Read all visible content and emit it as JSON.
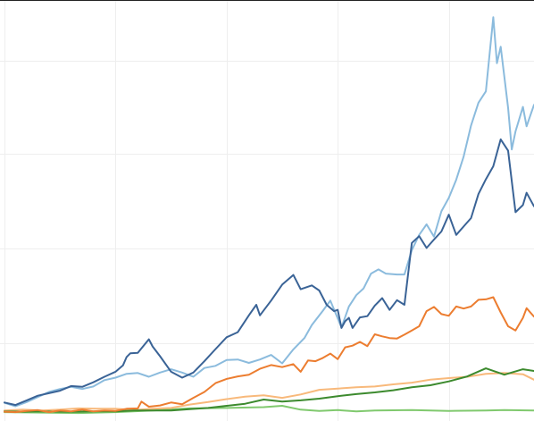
{
  "chart_data": {
    "type": "line",
    "title": "",
    "xlabel": "",
    "ylabel": "",
    "xlim": [
      0,
      143
    ],
    "ylim": [
      0,
      100
    ],
    "grid": true,
    "x_grid": [
      0,
      30,
      60,
      90,
      120
    ],
    "y_grid": [
      18.5,
      41,
      63.5,
      85.6
    ],
    "colors": {
      "dark_blue": "#3a6396",
      "light_blue": "#8bbbdd",
      "dark_orange": "#ec7d30",
      "light_orange": "#f8b97b",
      "dark_green": "#3c8a2e",
      "light_green": "#80c96e",
      "gridline": "#eeeeee",
      "top_border": "#222222"
    },
    "series": [
      {
        "color": "#3a6396",
        "values": [
          [
            0,
            4.4
          ],
          [
            3,
            3.8
          ],
          [
            6,
            4.9
          ],
          [
            9,
            6.0
          ],
          [
            12,
            6.6
          ],
          [
            15,
            7.2
          ],
          [
            18,
            8.3
          ],
          [
            21,
            8.1
          ],
          [
            24,
            9.2
          ],
          [
            27,
            10.5
          ],
          [
            30,
            11.7
          ],
          [
            32,
            13.2
          ],
          [
            33,
            15.2
          ],
          [
            34,
            16.1
          ],
          [
            36,
            16.2
          ],
          [
            39,
            19.4
          ],
          [
            40,
            17.7
          ],
          [
            42,
            15.4
          ],
          [
            45,
            11.7
          ],
          [
            48,
            10.3
          ],
          [
            51,
            11.5
          ],
          [
            54,
            14.2
          ],
          [
            57,
            17.1
          ],
          [
            60,
            19.9
          ],
          [
            63,
            21.1
          ],
          [
            66,
            25.1
          ],
          [
            68,
            27.6
          ],
          [
            69,
            25.1
          ],
          [
            72,
            28.6
          ],
          [
            75,
            32.4
          ],
          [
            78,
            34.7
          ],
          [
            80,
            31.3
          ],
          [
            83,
            32.2
          ],
          [
            85,
            31.0
          ],
          [
            87,
            27.6
          ],
          [
            89,
            26.1
          ],
          [
            90,
            26.4
          ],
          [
            91,
            22.1
          ],
          [
            92,
            23.7
          ],
          [
            93,
            24.5
          ],
          [
            94,
            22.1
          ],
          [
            96,
            24.6
          ],
          [
            98,
            24.9
          ],
          [
            100,
            27.4
          ],
          [
            102,
            29.2
          ],
          [
            104,
            26.4
          ],
          [
            106,
            28.7
          ],
          [
            108,
            27.6
          ],
          [
            110,
            42.3
          ],
          [
            112,
            43.9
          ],
          [
            114,
            41.1
          ],
          [
            116,
            43.1
          ],
          [
            118,
            45.0
          ],
          [
            120,
            49.0
          ],
          [
            122,
            44.2
          ],
          [
            124,
            46.2
          ],
          [
            126,
            48.2
          ],
          [
            128,
            53.9
          ],
          [
            130,
            57.4
          ],
          [
            132,
            60.5
          ],
          [
            134,
            66.9
          ],
          [
            136,
            64.2
          ],
          [
            138,
            49.6
          ],
          [
            140,
            51.3
          ],
          [
            141,
            54.2
          ],
          [
            143,
            51.0
          ]
        ]
      },
      {
        "color": "#8bbbdd",
        "values": [
          [
            0,
            4.3
          ],
          [
            3,
            3.5
          ],
          [
            6,
            4.5
          ],
          [
            9,
            5.7
          ],
          [
            12,
            6.9
          ],
          [
            15,
            7.6
          ],
          [
            18,
            8.1
          ],
          [
            21,
            7.6
          ],
          [
            24,
            8.2
          ],
          [
            27,
            9.7
          ],
          [
            30,
            10.3
          ],
          [
            33,
            11.2
          ],
          [
            36,
            11.4
          ],
          [
            39,
            10.5
          ],
          [
            42,
            11.5
          ],
          [
            45,
            12.3
          ],
          [
            48,
            11.5
          ],
          [
            51,
            10.5
          ],
          [
            54,
            12.6
          ],
          [
            57,
            13.1
          ],
          [
            60,
            14.5
          ],
          [
            63,
            14.6
          ],
          [
            66,
            13.8
          ],
          [
            69,
            14.6
          ],
          [
            72,
            15.7
          ],
          [
            75,
            13.7
          ],
          [
            78,
            17.0
          ],
          [
            81,
            19.7
          ],
          [
            83,
            22.8
          ],
          [
            86,
            26.2
          ],
          [
            88,
            28.6
          ],
          [
            90,
            24.4
          ],
          [
            91,
            22.2
          ],
          [
            93,
            27.2
          ],
          [
            95,
            29.9
          ],
          [
            97,
            31.5
          ],
          [
            99,
            35.0
          ],
          [
            101,
            36.0
          ],
          [
            103,
            35.0
          ],
          [
            106,
            34.8
          ],
          [
            108,
            34.8
          ],
          [
            110,
            40.6
          ],
          [
            112,
            44.2
          ],
          [
            114,
            46.7
          ],
          [
            116,
            43.8
          ],
          [
            118,
            49.8
          ],
          [
            120,
            53.0
          ],
          [
            122,
            57.3
          ],
          [
            124,
            62.8
          ],
          [
            126,
            70.2
          ],
          [
            128,
            75.6
          ],
          [
            130,
            78.3
          ],
          [
            132,
            95.9
          ],
          [
            133,
            85.0
          ],
          [
            134,
            88.9
          ],
          [
            136,
            74.4
          ],
          [
            137,
            64.5
          ],
          [
            138,
            68.8
          ],
          [
            140,
            74.6
          ],
          [
            141,
            70.0
          ],
          [
            143,
            75.1
          ]
        ]
      },
      {
        "color": "#ec7d30",
        "values": [
          [
            0,
            2.2
          ],
          [
            3,
            2.1
          ],
          [
            6,
            2.4
          ],
          [
            9,
            2.6
          ],
          [
            12,
            2.1
          ],
          [
            15,
            2.5
          ],
          [
            18,
            2.3
          ],
          [
            21,
            2.7
          ],
          [
            24,
            2.3
          ],
          [
            27,
            2.5
          ],
          [
            30,
            2.4
          ],
          [
            33,
            2.9
          ],
          [
            36,
            3.0
          ],
          [
            37,
            4.6
          ],
          [
            39,
            3.4
          ],
          [
            42,
            3.7
          ],
          [
            45,
            4.4
          ],
          [
            48,
            4.0
          ],
          [
            51,
            5.5
          ],
          [
            54,
            6.9
          ],
          [
            57,
            9.0
          ],
          [
            60,
            10.0
          ],
          [
            63,
            10.6
          ],
          [
            66,
            11.0
          ],
          [
            69,
            12.4
          ],
          [
            72,
            13.3
          ],
          [
            75,
            12.8
          ],
          [
            78,
            13.5
          ],
          [
            80,
            11.7
          ],
          [
            82,
            14.4
          ],
          [
            84,
            14.2
          ],
          [
            86,
            15.0
          ],
          [
            88,
            16.0
          ],
          [
            90,
            14.7
          ],
          [
            92,
            17.5
          ],
          [
            94,
            17.9
          ],
          [
            96,
            18.8
          ],
          [
            98,
            17.8
          ],
          [
            100,
            20.6
          ],
          [
            102,
            20.1
          ],
          [
            104,
            19.7
          ],
          [
            106,
            19.6
          ],
          [
            108,
            20.5
          ],
          [
            110,
            21.5
          ],
          [
            112,
            22.5
          ],
          [
            114,
            26.1
          ],
          [
            116,
            27.1
          ],
          [
            118,
            25.4
          ],
          [
            120,
            25.0
          ],
          [
            122,
            27.2
          ],
          [
            124,
            26.7
          ],
          [
            126,
            27.2
          ],
          [
            128,
            28.8
          ],
          [
            130,
            28.9
          ],
          [
            132,
            29.4
          ],
          [
            134,
            25.8
          ],
          [
            136,
            22.5
          ],
          [
            138,
            21.5
          ],
          [
            140,
            24.5
          ],
          [
            141,
            26.8
          ],
          [
            143,
            24.8
          ]
        ]
      },
      {
        "color": "#f8b97b",
        "values": [
          [
            0,
            2.5
          ],
          [
            5,
            2.7
          ],
          [
            10,
            2.5
          ],
          [
            15,
            2.7
          ],
          [
            20,
            3.0
          ],
          [
            25,
            2.9
          ],
          [
            30,
            2.9
          ],
          [
            35,
            2.6
          ],
          [
            40,
            2.9
          ],
          [
            45,
            3.1
          ],
          [
            50,
            3.9
          ],
          [
            55,
            4.5
          ],
          [
            60,
            5.2
          ],
          [
            65,
            5.8
          ],
          [
            70,
            6.1
          ],
          [
            75,
            5.5
          ],
          [
            80,
            6.3
          ],
          [
            85,
            7.4
          ],
          [
            90,
            7.7
          ],
          [
            95,
            8.0
          ],
          [
            100,
            8.2
          ],
          [
            105,
            8.7
          ],
          [
            110,
            9.1
          ],
          [
            115,
            9.8
          ],
          [
            120,
            10.2
          ],
          [
            125,
            10.5
          ],
          [
            130,
            11.2
          ],
          [
            135,
            11.4
          ],
          [
            140,
            11.1
          ],
          [
            143,
            9.8
          ]
        ]
      },
      {
        "color": "#3c8a2e",
        "values": [
          [
            0,
            2.3
          ],
          [
            5,
            2.2
          ],
          [
            10,
            2.3
          ],
          [
            15,
            2.2
          ],
          [
            20,
            2.2
          ],
          [
            25,
            2.3
          ],
          [
            30,
            2.3
          ],
          [
            35,
            2.5
          ],
          [
            40,
            2.5
          ],
          [
            45,
            2.5
          ],
          [
            50,
            2.8
          ],
          [
            55,
            3.1
          ],
          [
            60,
            3.6
          ],
          [
            65,
            4.1
          ],
          [
            70,
            5.1
          ],
          [
            75,
            4.6
          ],
          [
            80,
            4.9
          ],
          [
            85,
            5.3
          ],
          [
            90,
            5.9
          ],
          [
            95,
            6.4
          ],
          [
            100,
            6.8
          ],
          [
            105,
            7.3
          ],
          [
            110,
            8.0
          ],
          [
            115,
            8.5
          ],
          [
            120,
            9.4
          ],
          [
            125,
            10.6
          ],
          [
            130,
            12.5
          ],
          [
            135,
            11.0
          ],
          [
            140,
            12.3
          ],
          [
            143,
            11.9
          ]
        ]
      },
      {
        "color": "#80c96e",
        "values": [
          [
            0,
            2.1
          ],
          [
            10,
            2.0
          ],
          [
            20,
            1.9
          ],
          [
            30,
            2.1
          ],
          [
            40,
            2.5
          ],
          [
            50,
            3.0
          ],
          [
            60,
            3.1
          ],
          [
            70,
            3.3
          ],
          [
            75,
            3.6
          ],
          [
            80,
            2.7
          ],
          [
            85,
            2.4
          ],
          [
            90,
            2.6
          ],
          [
            95,
            2.3
          ],
          [
            100,
            2.5
          ],
          [
            110,
            2.6
          ],
          [
            120,
            2.4
          ],
          [
            130,
            2.5
          ],
          [
            135,
            2.6
          ],
          [
            143,
            2.5
          ]
        ]
      }
    ]
  }
}
